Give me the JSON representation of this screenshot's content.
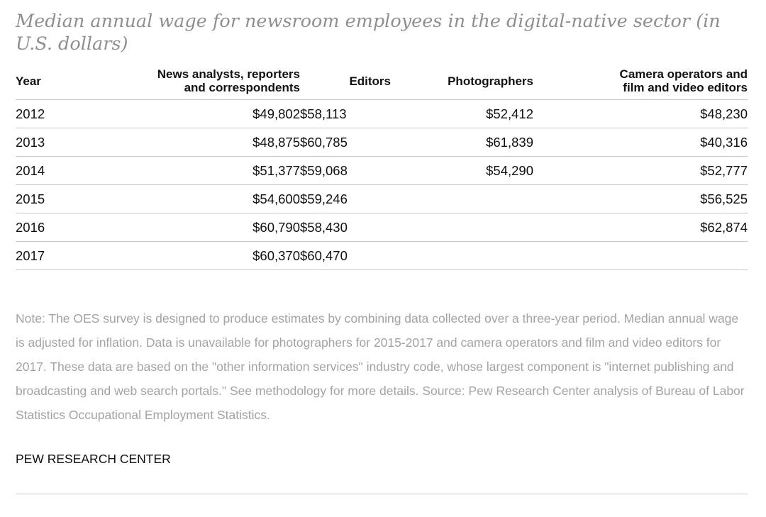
{
  "title": "Median annual wage for newsroom employees in the digital-native sector (in U.S. dollars)",
  "chart_data": {
    "type": "table",
    "title": "Median annual wage for newsroom employees in the digital-native sector (in U.S. dollars)",
    "columns": [
      "Year",
      "News analysts, reporters and correspondents",
      "Editors",
      "Photographers",
      "Camera operators and film and video editors"
    ],
    "rows": [
      {
        "year": "2012",
        "news": "$49,802",
        "editors": "$58,113",
        "photographers": "$52,412",
        "camera": "$48,230"
      },
      {
        "year": "2013",
        "news": "$48,875",
        "editors": "$60,785",
        "photographers": "$61,839",
        "camera": "$40,316"
      },
      {
        "year": "2014",
        "news": "$51,377",
        "editors": "$59,068",
        "photographers": "$54,290",
        "camera": "$52,777"
      },
      {
        "year": "2015",
        "news": "$54,600",
        "editors": "$59,246",
        "photographers": "",
        "camera": "$56,525"
      },
      {
        "year": "2016",
        "news": "$60,790",
        "editors": "$58,430",
        "photographers": "",
        "camera": "$62,874"
      },
      {
        "year": "2017",
        "news": "$60,370",
        "editors": "$60,470",
        "photographers": "",
        "camera": ""
      }
    ],
    "grid": "horizontal rules between rows"
  },
  "header": {
    "year": "Year",
    "news_line1": "News analysts, reporters",
    "news_line2": "and correspondents",
    "editors": "Editors",
    "photographers": "Photographers",
    "camera_line1": "Camera operators and",
    "camera_line2": "film and video editors"
  },
  "note": "Note: The OES survey is designed to produce estimates by combining data collected over a three-year period. Median annual wage is adjusted for inflation. Data is unavailable for photographers for 2015-2017 and camera operators and film and video editors for 2017. These data are based on the \"other information services\" industry code, whose largest component is \"internet publishing and broadcasting and web search portals.\" See methodology for more details. Source: Pew Research Center analysis of Bureau of Labor Statistics Occupational Employment Statistics.",
  "source": "PEW RESEARCH CENTER",
  "colors": {
    "title": "#8f8f8f",
    "note": "#a3a3a3",
    "text": "#111111",
    "rule": "#c8c8c8"
  }
}
